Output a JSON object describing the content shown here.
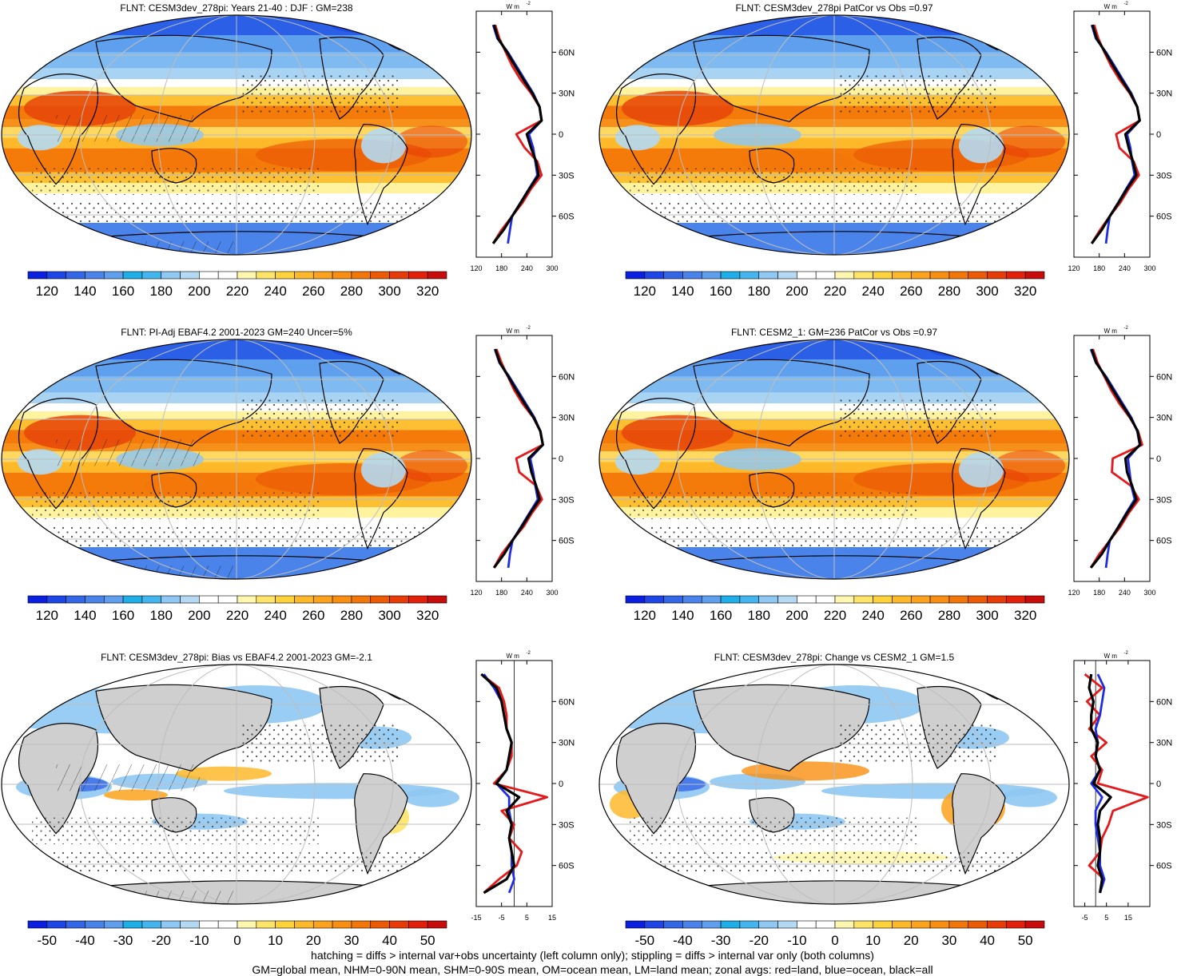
{
  "figure": {
    "footer_line1": "hatching = diffs > internal var+obs uncertainty (left column only); stippling = diffs > internal var only (both columns)",
    "footer_line2": "GM=global mean, NHM=0-90N mean, SHM=0-90S mean, OM=ocean mean, LM=land mean; zonal avgs: red=land, blue=ocean, black=all"
  },
  "colors": {
    "abs_scale": [
      "#0a1fe0",
      "#1e46e6",
      "#3466e8",
      "#4a84ea",
      "#5f9fee",
      "#1eaee8",
      "#44b6ef",
      "#8fc8f2",
      "#b4d9f2",
      "#ffffff",
      "#ffffff",
      "#fff7b0",
      "#fee468",
      "#fed23a",
      "#fdb92a",
      "#fca21c",
      "#f98e10",
      "#f37608",
      "#ec5a06",
      "#e73c08",
      "#e3200a",
      "#c80c0c"
    ],
    "diff_scale": [
      "#0a1fe0",
      "#1e46e6",
      "#3466e8",
      "#4a84ea",
      "#5f9fee",
      "#1eaee8",
      "#44b6ef",
      "#8fc8f2",
      "#b4d9f2",
      "#ffffff",
      "#ffffff",
      "#fff7b0",
      "#fee468",
      "#fed23a",
      "#fdb92a",
      "#fca21c",
      "#f98e10",
      "#f37608",
      "#ec5a06",
      "#e73c08",
      "#e3200a",
      "#c80c0c"
    ],
    "land": "#e41a1c",
    "ocean": "#1f2ee6",
    "all": "#000000"
  },
  "chart_data": [
    {
      "type": "heatmap",
      "title": "FLNT: CESM3dev_278pi: Years 21-40 : DJF : GM=238",
      "colorbar_ticks": [
        "120",
        "140",
        "160",
        "180",
        "200",
        "220",
        "240",
        "260",
        "280",
        "300",
        "320"
      ],
      "zonal": {
        "units": "W m",
        "xticks": [
          "120",
          "180",
          "240",
          "300"
        ],
        "xlim": [
          120,
          300
        ],
        "yticks": [
          "60N",
          "30N",
          "0",
          "30S",
          "60S"
        ],
        "lat": [
          80,
          70,
          60,
          50,
          40,
          30,
          20,
          10,
          0,
          -10,
          -20,
          -30,
          -40,
          -50,
          -60,
          -70,
          -80
        ],
        "land": [
          165,
          175,
          190,
          205,
          225,
          250,
          270,
          275,
          215,
          235,
          265,
          275,
          250,
          230,
          205,
          180,
          160
        ],
        "ocean": [
          160,
          170,
          195,
          215,
          235,
          255,
          270,
          275,
          245,
          255,
          260,
          265,
          245,
          225,
          205,
          200,
          195
        ],
        "all": [
          162,
          172,
          193,
          212,
          232,
          253,
          270,
          275,
          240,
          250,
          262,
          268,
          246,
          226,
          205,
          185,
          160
        ]
      }
    },
    {
      "type": "heatmap",
      "title": "FLNT: CESM3dev_278pi PatCor vs Obs =0.97",
      "colorbar_ticks": [
        "120",
        "140",
        "160",
        "180",
        "200",
        "220",
        "240",
        "260",
        "280",
        "300",
        "320"
      ],
      "zonal": {
        "units": "W m",
        "xticks": [
          "120",
          "180",
          "240",
          "300"
        ],
        "xlim": [
          120,
          300
        ],
        "yticks": [
          "60N",
          "30N",
          "0",
          "30S",
          "60S"
        ],
        "lat": [
          80,
          70,
          60,
          50,
          40,
          30,
          20,
          10,
          0,
          -10,
          -20,
          -30,
          -40,
          -50,
          -60,
          -70,
          -80
        ],
        "land": [
          168,
          178,
          192,
          208,
          228,
          252,
          270,
          276,
          220,
          228,
          262,
          274,
          250,
          230,
          205,
          182,
          162
        ],
        "ocean": [
          162,
          172,
          196,
          216,
          236,
          256,
          270,
          276,
          246,
          254,
          258,
          264,
          244,
          225,
          205,
          200,
          196
        ],
        "all": [
          164,
          174,
          194,
          213,
          233,
          254,
          270,
          276,
          242,
          250,
          260,
          268,
          246,
          226,
          205,
          186,
          162
        ]
      }
    },
    {
      "type": "heatmap",
      "title": "FLNT: PI-Adj EBAF4.2 2001-2023 GM=240 Uncer=5%",
      "colorbar_ticks": [
        "120",
        "140",
        "160",
        "180",
        "200",
        "220",
        "240",
        "260",
        "280",
        "300",
        "320"
      ],
      "zonal": {
        "units": "W m",
        "xticks": [
          "120",
          "180",
          "240",
          "300"
        ],
        "xlim": [
          120,
          300
        ],
        "yticks": [
          "60N",
          "30N",
          "0",
          "30S",
          "60S"
        ],
        "lat": [
          80,
          70,
          60,
          50,
          40,
          30,
          20,
          10,
          0,
          -10,
          -20,
          -30,
          -40,
          -50,
          -60,
          -70,
          -80
        ],
        "land": [
          168,
          180,
          195,
          210,
          230,
          255,
          272,
          278,
          215,
          222,
          262,
          276,
          252,
          232,
          205,
          180,
          162
        ],
        "ocean": [
          164,
          175,
          198,
          218,
          238,
          258,
          272,
          278,
          248,
          255,
          260,
          266,
          246,
          226,
          206,
          200,
          196
        ],
        "all": [
          165,
          176,
          196,
          215,
          235,
          256,
          272,
          278,
          244,
          251,
          262,
          270,
          248,
          228,
          206,
          186,
          162
        ]
      }
    },
    {
      "type": "heatmap",
      "title": "FLNT: CESM2_1: GM=236 PatCor vs Obs =0.97",
      "colorbar_ticks": [
        "120",
        "140",
        "160",
        "180",
        "200",
        "220",
        "240",
        "260",
        "280",
        "300",
        "320"
      ],
      "zonal": {
        "units": "W m",
        "xticks": [
          "120",
          "180",
          "240",
          "300"
        ],
        "xlim": [
          120,
          300
        ],
        "yticks": [
          "60N",
          "30N",
          "0",
          "30S",
          "60S"
        ],
        "lat": [
          80,
          70,
          60,
          50,
          40,
          30,
          20,
          10,
          0,
          -10,
          -20,
          -30,
          -40,
          -50,
          -60,
          -70,
          -80
        ],
        "land": [
          165,
          176,
          192,
          208,
          228,
          252,
          272,
          282,
          212,
          210,
          255,
          274,
          250,
          230,
          205,
          180,
          160
        ],
        "ocean": [
          160,
          172,
          196,
          216,
          236,
          256,
          270,
          276,
          248,
          252,
          256,
          264,
          244,
          225,
          205,
          200,
          196
        ],
        "all": [
          162,
          173,
          194,
          213,
          233,
          254,
          271,
          277,
          242,
          246,
          258,
          268,
          246,
          226,
          205,
          186,
          160
        ]
      }
    },
    {
      "type": "heatmap",
      "title": "FLNT: CESM3dev_278pi: Bias vs EBAF4.2 2001-2023 GM=-2.1",
      "colorbar_ticks": [
        "-50",
        "-40",
        "-30",
        "-20",
        "-10",
        "0",
        "10",
        "20",
        "30",
        "40",
        "50"
      ],
      "zonal": {
        "units": "W m",
        "xticks": [
          "-15",
          "-5",
          "5",
          "15"
        ],
        "xlim": [
          -15,
          15
        ],
        "yticks": [
          "60N",
          "30N",
          "0",
          "30S",
          "60S"
        ],
        "lat": [
          80,
          70,
          60,
          50,
          40,
          30,
          20,
          10,
          0,
          -10,
          -20,
          -30,
          -40,
          -50,
          -60,
          -70,
          -80
        ],
        "land": [
          -13,
          -6,
          -4,
          -3,
          -3,
          -1,
          -1,
          -3,
          -8,
          13,
          -5,
          0,
          -2,
          3,
          1,
          -6,
          -12
        ],
        "ocean": [
          -12,
          -8,
          -5,
          -4,
          -3,
          -1,
          -2,
          -3,
          -7,
          -2,
          -2,
          -1,
          -2,
          -1,
          -1,
          0,
          -2
        ],
        "all": [
          -13,
          -7,
          -5,
          -4,
          -3,
          -1,
          -2,
          -3,
          -7,
          2,
          -3,
          -1,
          -2,
          -1,
          0,
          -3,
          -12
        ]
      }
    },
    {
      "type": "heatmap",
      "title": "FLNT: CESM3dev_278pi: Change vs CESM2_1 GM=1.5",
      "colorbar_ticks": [
        "-50",
        "-40",
        "-30",
        "-20",
        "-10",
        "0",
        "10",
        "20",
        "30",
        "40",
        "50"
      ],
      "zonal": {
        "units": "W m",
        "xticks": [
          "-5",
          "5",
          "15"
        ],
        "xlim": [
          -10,
          25
        ],
        "yticks": [
          "60N",
          "30N",
          "0",
          "30S",
          "60S"
        ],
        "lat": [
          80,
          70,
          60,
          50,
          40,
          30,
          20,
          10,
          0,
          -10,
          -20,
          -30,
          -40,
          -50,
          -60,
          -70,
          -80
        ],
        "land": [
          -5,
          3,
          -4,
          2,
          -3,
          5,
          -2,
          3,
          1,
          24,
          8,
          6,
          3,
          2,
          -3,
          4,
          2
        ],
        "ocean": [
          1,
          4,
          3,
          2,
          0,
          1,
          0,
          2,
          -2,
          3,
          0,
          0,
          1,
          2,
          2,
          4,
          2
        ],
        "all": [
          -2,
          -3,
          -1,
          -2,
          -2,
          1,
          0,
          2,
          -1,
          7,
          2,
          1,
          2,
          2,
          1,
          3,
          2
        ]
      }
    }
  ]
}
